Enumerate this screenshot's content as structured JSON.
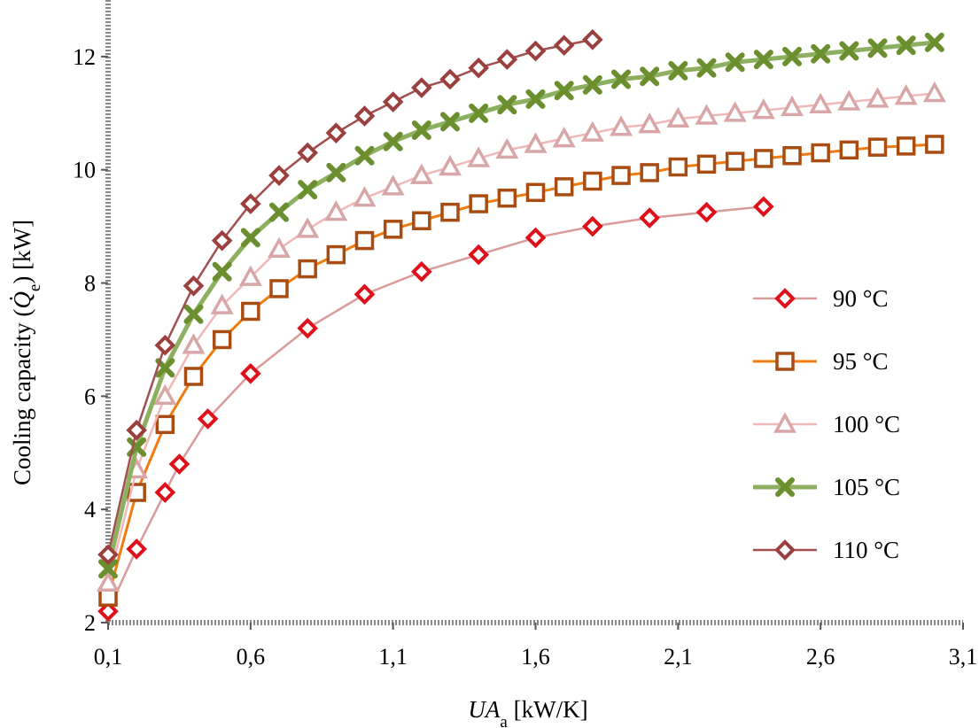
{
  "chart_data": {
    "type": "line",
    "xlabel_main": "UA",
    "xlabel_sub": "a",
    "xlabel_unit": " [kW/K]",
    "ylabel_pre": "Cooling capacity (",
    "ylabel_sym": "Q̇",
    "ylabel_sub": "e",
    "ylabel_post": ") [kW]",
    "xlim": [
      0.1,
      3.1
    ],
    "ylim": [
      2,
      13
    ],
    "xticks": [
      0.1,
      0.6,
      1.1,
      1.6,
      2.1,
      2.6,
      3.1
    ],
    "xtick_labels": [
      "0,1",
      "0,6",
      "1,1",
      "1,6",
      "2,1",
      "2,6",
      "3,1"
    ],
    "yticks": [
      2,
      4,
      6,
      8,
      10,
      12
    ],
    "ytick_labels": [
      "2",
      "4",
      "6",
      "8",
      "10",
      "12"
    ],
    "legend_position": "right",
    "series": [
      {
        "name": "90 °C",
        "color": "#c0392b",
        "line_color": "#d99a9a",
        "marker": "diamond",
        "marker_color": "#e0101a",
        "x": [
          0.1,
          0.2,
          0.3,
          0.35,
          0.45,
          0.6,
          0.8,
          1.0,
          1.2,
          1.4,
          1.6,
          1.8,
          2.0,
          2.2,
          2.4
        ],
        "y": [
          2.2,
          3.3,
          4.3,
          4.8,
          5.6,
          6.4,
          7.2,
          7.8,
          8.2,
          8.5,
          8.8,
          9.0,
          9.15,
          9.25,
          9.35
        ]
      },
      {
        "name": "95 °C",
        "color": "#c25b00",
        "line_color": "#f07c10",
        "marker": "square",
        "marker_color": "#a84c12",
        "x": [
          0.1,
          0.2,
          0.3,
          0.4,
          0.5,
          0.6,
          0.7,
          0.8,
          0.9,
          1.0,
          1.1,
          1.2,
          1.3,
          1.4,
          1.5,
          1.6,
          1.7,
          1.8,
          1.9,
          2.0,
          2.1,
          2.2,
          2.3,
          2.4,
          2.5,
          2.6,
          2.7,
          2.8,
          2.9,
          3.0
        ],
        "y": [
          2.45,
          4.3,
          5.5,
          6.35,
          7.0,
          7.5,
          7.9,
          8.25,
          8.5,
          8.75,
          8.95,
          9.1,
          9.25,
          9.4,
          9.5,
          9.6,
          9.7,
          9.8,
          9.9,
          9.95,
          10.05,
          10.1,
          10.15,
          10.2,
          10.25,
          10.3,
          10.35,
          10.4,
          10.42,
          10.45
        ]
      },
      {
        "name": "100 °C",
        "color": "#e8a0a0",
        "line_color": "#f0b8b8",
        "marker": "triangle",
        "marker_color": "#d8a6a6",
        "x": [
          0.1,
          0.2,
          0.3,
          0.4,
          0.5,
          0.6,
          0.7,
          0.8,
          0.9,
          1.0,
          1.1,
          1.2,
          1.3,
          1.4,
          1.5,
          1.6,
          1.7,
          1.8,
          1.9,
          2.0,
          2.1,
          2.2,
          2.3,
          2.4,
          2.5,
          2.6,
          2.7,
          2.8,
          2.9,
          3.0
        ],
        "y": [
          2.7,
          4.7,
          6.0,
          6.9,
          7.6,
          8.1,
          8.6,
          8.95,
          9.25,
          9.5,
          9.7,
          9.9,
          10.05,
          10.2,
          10.35,
          10.45,
          10.55,
          10.65,
          10.75,
          10.8,
          10.9,
          10.95,
          11.0,
          11.05,
          11.1,
          11.15,
          11.2,
          11.25,
          11.3,
          11.35
        ]
      },
      {
        "name": "105 °C",
        "color": "#6b8e23",
        "line_color": "#8db060",
        "marker": "cross",
        "marker_color": "#6b8f2e",
        "x": [
          0.1,
          0.2,
          0.3,
          0.4,
          0.5,
          0.6,
          0.7,
          0.8,
          0.9,
          1.0,
          1.1,
          1.2,
          1.3,
          1.4,
          1.5,
          1.6,
          1.7,
          1.8,
          1.9,
          2.0,
          2.1,
          2.2,
          2.3,
          2.4,
          2.5,
          2.6,
          2.7,
          2.8,
          2.9,
          3.0
        ],
        "y": [
          2.95,
          5.1,
          6.5,
          7.45,
          8.2,
          8.8,
          9.25,
          9.65,
          9.95,
          10.25,
          10.5,
          10.7,
          10.85,
          11.0,
          11.15,
          11.25,
          11.4,
          11.5,
          11.6,
          11.65,
          11.75,
          11.8,
          11.9,
          11.95,
          12.0,
          12.05,
          12.1,
          12.15,
          12.2,
          12.25
        ]
      },
      {
        "name": "110 °C",
        "color": "#8b3a3a",
        "line_color": "#a05050",
        "marker": "diamond",
        "marker_color": "#9c3f3f",
        "x": [
          0.1,
          0.2,
          0.3,
          0.4,
          0.5,
          0.6,
          0.7,
          0.8,
          0.9,
          1.0,
          1.1,
          1.2,
          1.3,
          1.4,
          1.5,
          1.6,
          1.7,
          1.8
        ],
        "y": [
          3.2,
          5.4,
          6.9,
          7.95,
          8.75,
          9.4,
          9.9,
          10.3,
          10.65,
          10.95,
          11.2,
          11.45,
          11.6,
          11.8,
          11.95,
          12.1,
          12.2,
          12.3
        ]
      }
    ]
  }
}
